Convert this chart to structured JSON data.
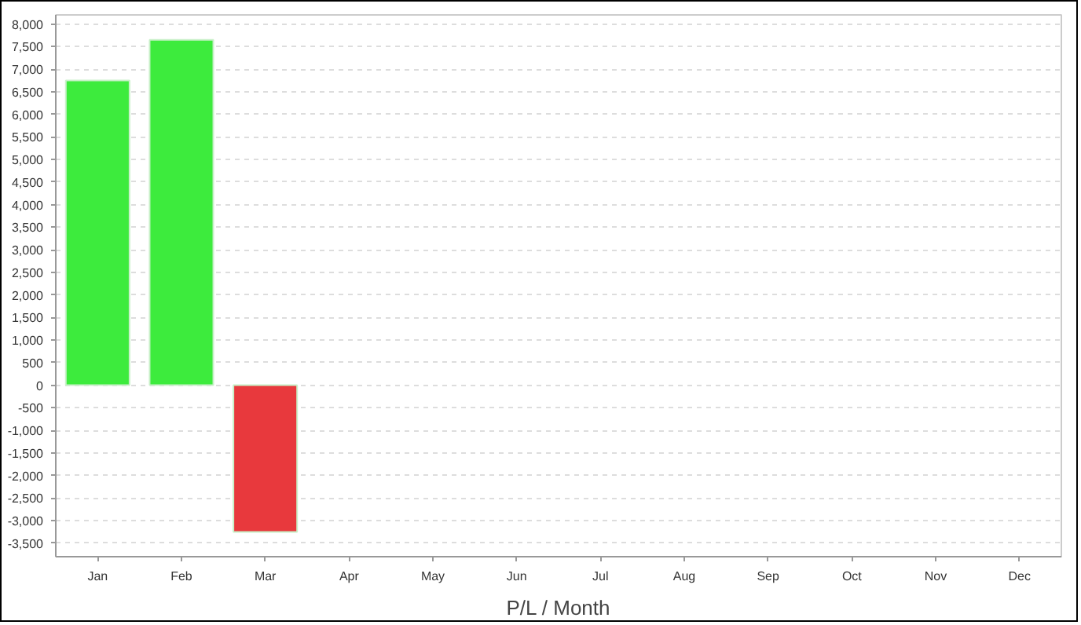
{
  "chart_data": {
    "type": "bar",
    "xlabel": "P/L / Month",
    "categories": [
      "Jan",
      "Feb",
      "Mar",
      "Apr",
      "May",
      "Jun",
      "Jul",
      "Aug",
      "Sep",
      "Oct",
      "Nov",
      "Dec"
    ],
    "values": [
      6750,
      7650,
      -3250,
      null,
      null,
      null,
      null,
      null,
      null,
      null,
      null,
      null
    ],
    "colors": [
      "#3deb3d",
      "#3deb3d",
      "#e8393d",
      "#3deb3d",
      "#3deb3d",
      "#3deb3d",
      "#3deb3d",
      "#3deb3d",
      "#3deb3d",
      "#3deb3d",
      "#3deb3d",
      "#3deb3d"
    ],
    "ylim": [
      -3800,
      8200
    ],
    "yticks": [
      {
        "value": -3500,
        "label": "-3,500"
      },
      {
        "value": -3000,
        "label": "-3,000"
      },
      {
        "value": -2500,
        "label": "-2,500"
      },
      {
        "value": -2000,
        "label": "-2,000"
      },
      {
        "value": -1500,
        "label": "-1,500"
      },
      {
        "value": -1000,
        "label": "-1,000"
      },
      -500,
      0,
      500,
      {
        "value": 1000,
        "label": "1,000"
      },
      {
        "value": 1500,
        "label": "1,500"
      },
      {
        "value": 2000,
        "label": "2,000"
      },
      {
        "value": 2500,
        "label": "2,500"
      },
      {
        "value": 3000,
        "label": "3,000"
      },
      {
        "value": 3500,
        "label": "3,500"
      },
      {
        "value": 4000,
        "label": "4,000"
      },
      {
        "value": 4500,
        "label": "4,500"
      },
      {
        "value": 5000,
        "label": "5,000"
      },
      {
        "value": 5500,
        "label": "5,500"
      },
      {
        "value": 6000,
        "label": "6,000"
      },
      {
        "value": 6500,
        "label": "6,500"
      },
      {
        "value": 7000,
        "label": "7,000"
      },
      {
        "value": 7500,
        "label": "7,500"
      },
      {
        "value": 8000,
        "label": "8,000"
      }
    ],
    "grid": "y"
  }
}
